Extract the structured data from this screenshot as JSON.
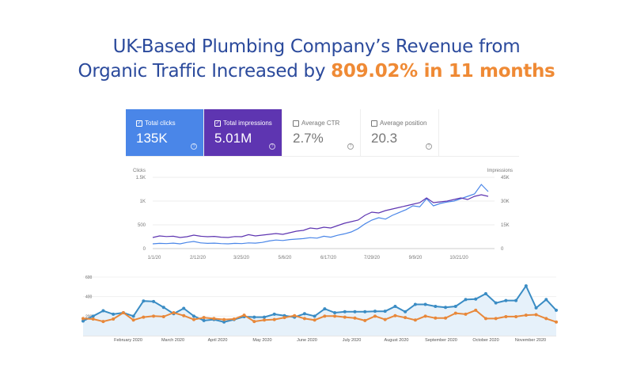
{
  "title": {
    "line1": "UK-Based Plumbing Company’s Revenue from",
    "line2": "Organic Traffic Increased by",
    "highlight": "809.02% in 11 months"
  },
  "cards": [
    {
      "label": "Total clicks",
      "value": "135K",
      "checked": true
    },
    {
      "label": "Total impressions",
      "value": "5.01M",
      "checked": true
    },
    {
      "label": "Average CTR",
      "value": "2.7%",
      "checked": false
    },
    {
      "label": "Average position",
      "value": "20.3",
      "checked": false
    }
  ],
  "colors": {
    "title": "#2b4a9c",
    "accent": "#ef8a35",
    "clicks": "#4a86e8",
    "impressions": "#5e35b1",
    "ga_blue": "#3a8cc4",
    "ga_orange": "#e8883a"
  },
  "chart_data": [
    {
      "type": "line",
      "title": "",
      "ylabel": "Clicks",
      "y2label": "Impressions",
      "ylim": [
        0,
        1500
      ],
      "y2lim": [
        0,
        45000
      ],
      "yticks": [
        "0",
        "500",
        "1K",
        "1.5K"
      ],
      "y2ticks": [
        "0",
        "15K",
        "30K",
        "45K"
      ],
      "xticks": [
        "1/1/20",
        "2/12/20",
        "3/25/20",
        "5/6/20",
        "6/17/20",
        "7/29/20",
        "9/9/20",
        "10/21/20"
      ],
      "series": [
        {
          "name": "Total clicks",
          "axis": "left",
          "values": [
            100,
            110,
            105,
            115,
            100,
            130,
            150,
            120,
            110,
            115,
            105,
            100,
            110,
            105,
            120,
            115,
            130,
            160,
            180,
            170,
            190,
            200,
            210,
            230,
            220,
            260,
            240,
            280,
            310,
            350,
            420,
            520,
            600,
            650,
            620,
            700,
            760,
            820,
            900,
            880,
            1050,
            900,
            950,
            980,
            1000,
            1050,
            1100,
            1150,
            1350,
            1200
          ]
        },
        {
          "name": "Total impressions",
          "axis": "right",
          "values": [
            7000,
            8000,
            7600,
            7800,
            7000,
            7500,
            8500,
            7800,
            7500,
            7700,
            7200,
            7000,
            7600,
            7500,
            8800,
            8000,
            8500,
            9000,
            9500,
            9000,
            10000,
            11000,
            11500,
            13000,
            12500,
            13500,
            13000,
            14500,
            16000,
            17000,
            18000,
            21000,
            23000,
            22500,
            24000,
            25000,
            26000,
            27000,
            28000,
            29000,
            32000,
            29000,
            29500,
            30000,
            31000,
            32000,
            31000,
            33000,
            34000,
            33000
          ]
        }
      ]
    },
    {
      "type": "line",
      "title": "",
      "ylim": [
        0,
        600
      ],
      "yticks": [
        "200",
        "400",
        "600"
      ],
      "xticks": [
        "February 2020",
        "March 2020",
        "April 2020",
        "May 2020",
        "June 2020",
        "July 2020",
        "August 2020",
        "September 2020",
        "October 2020",
        "November 2020"
      ],
      "series": [
        {
          "name": "blue",
          "values": [
            150,
            200,
            255,
            220,
            235,
            200,
            355,
            350,
            290,
            225,
            280,
            200,
            155,
            165,
            140,
            165,
            195,
            190,
            190,
            220,
            205,
            190,
            225,
            200,
            275,
            235,
            245,
            245,
            245,
            250,
            250,
            300,
            245,
            320,
            320,
            300,
            290,
            300,
            370,
            375,
            430,
            335,
            360,
            360,
            510,
            285,
            370,
            260
          ]
        },
        {
          "name": "orange",
          "values": [
            175,
            170,
            145,
            170,
            235,
            160,
            190,
            200,
            195,
            235,
            205,
            165,
            185,
            175,
            165,
            170,
            210,
            145,
            160,
            165,
            185,
            205,
            175,
            160,
            200,
            200,
            190,
            180,
            155,
            200,
            165,
            205,
            185,
            160,
            200,
            180,
            180,
            230,
            220,
            260,
            175,
            175,
            195,
            195,
            210,
            215,
            175,
            140
          ]
        }
      ]
    }
  ]
}
